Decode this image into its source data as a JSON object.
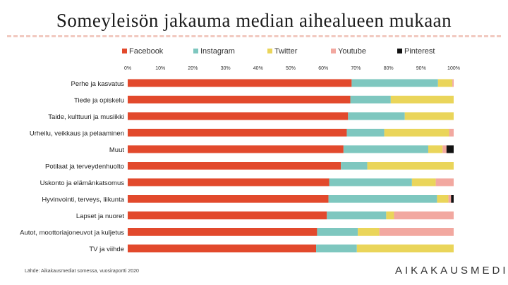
{
  "chart_data": {
    "type": "bar",
    "orientation": "horizontal",
    "stacked": "percent",
    "title": "Someyleisön jakauma median aihealueen mukaan",
    "legend_position": "top",
    "xlim": [
      0,
      100
    ],
    "x_ticks": [
      "0%",
      "10%",
      "20%",
      "30%",
      "40%",
      "50%",
      "60%",
      "70%",
      "80%",
      "90%",
      "100%"
    ],
    "categories": [
      "Perhe ja kasvatus",
      "Tiede ja opiskelu",
      "Taide, kulttuuri ja musiikki",
      "Urheilu, veikkaus ja pelaaminen",
      "Muut",
      "Potilaat ja terveydenhuolto",
      "Uskonto ja elämänkatsomus",
      "Hyvinvointi, terveys, liikunta",
      "Lapset ja nuoret",
      "Autot, moottoriajoneuvot ja kuljetus",
      "TV ja viihde"
    ],
    "series": [
      {
        "name": "Facebook",
        "color": "#e2492c",
        "values": [
          68.7,
          68.3,
          67.6,
          67.2,
          66.2,
          65.4,
          61.8,
          61.6,
          61.1,
          58.1,
          57.8
        ]
      },
      {
        "name": "Instagram",
        "color": "#7ec7bf",
        "values": [
          26.5,
          12.4,
          17.4,
          11.5,
          26.0,
          8.1,
          25.4,
          33.3,
          18.2,
          12.5,
          12.5
        ]
      },
      {
        "name": "Twitter",
        "color": "#ead55a",
        "values": [
          4.4,
          19.3,
          15.0,
          19.9,
          4.4,
          26.5,
          7.3,
          3.5,
          2.4,
          6.6,
          29.7
        ]
      },
      {
        "name": "Youtube",
        "color": "#f2a8a0",
        "values": [
          0.4,
          0.0,
          0.0,
          1.4,
          1.2,
          0.0,
          5.5,
          0.8,
          18.3,
          22.8,
          0.0
        ]
      },
      {
        "name": "Pinterest",
        "color": "#111111",
        "values": [
          0.0,
          0.0,
          0.0,
          0.0,
          2.2,
          0.0,
          0.0,
          0.8,
          0.0,
          0.0,
          0.0
        ]
      }
    ]
  },
  "footer": {
    "source": "Lähde: Aikakausmediat somessa, vuosiraportti 2020",
    "brand": "AIKAKAUSMEDIA"
  }
}
